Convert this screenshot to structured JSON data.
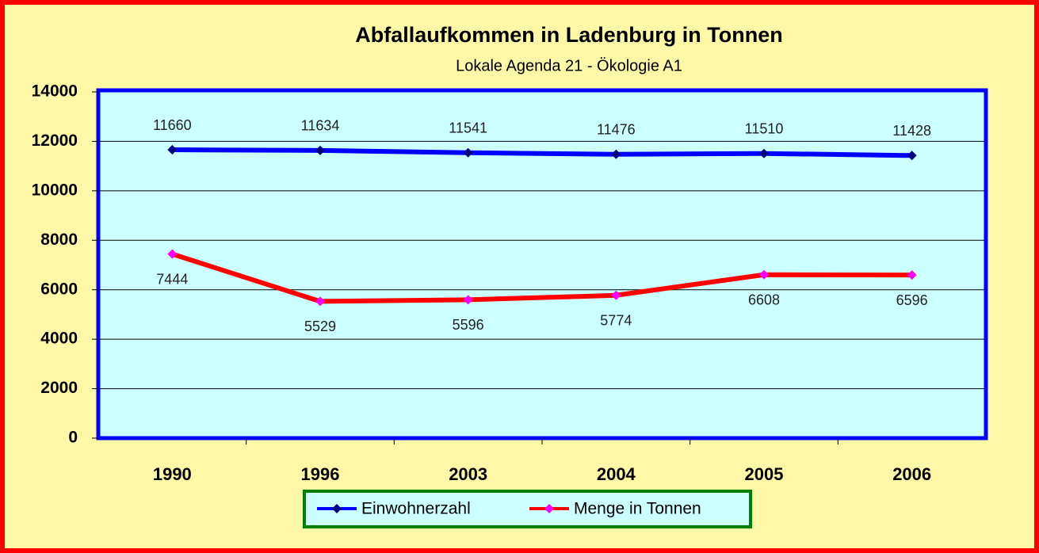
{
  "chart_data": {
    "type": "line",
    "title": "Abfallaufkommen in Ladenburg in Tonnen",
    "subtitle": "Lokale Agenda 21 - Ökologie A1",
    "categories": [
      "1990",
      "1996",
      "2003",
      "2004",
      "2005",
      "2006"
    ],
    "series": [
      {
        "name": "Einwohnerzahl",
        "color": "#0000ff",
        "marker_color": "#000080",
        "values": [
          11660,
          11634,
          11541,
          11476,
          11510,
          11428
        ]
      },
      {
        "name": "Menge in Tonnen",
        "color": "#ff0000",
        "marker_color": "#ff00ff",
        "values": [
          7444,
          5529,
          5596,
          5774,
          6608,
          6596
        ]
      }
    ],
    "ylim": [
      0,
      14000
    ],
    "yticks": [
      0,
      2000,
      4000,
      6000,
      8000,
      10000,
      12000,
      14000
    ],
    "grid": true
  }
}
